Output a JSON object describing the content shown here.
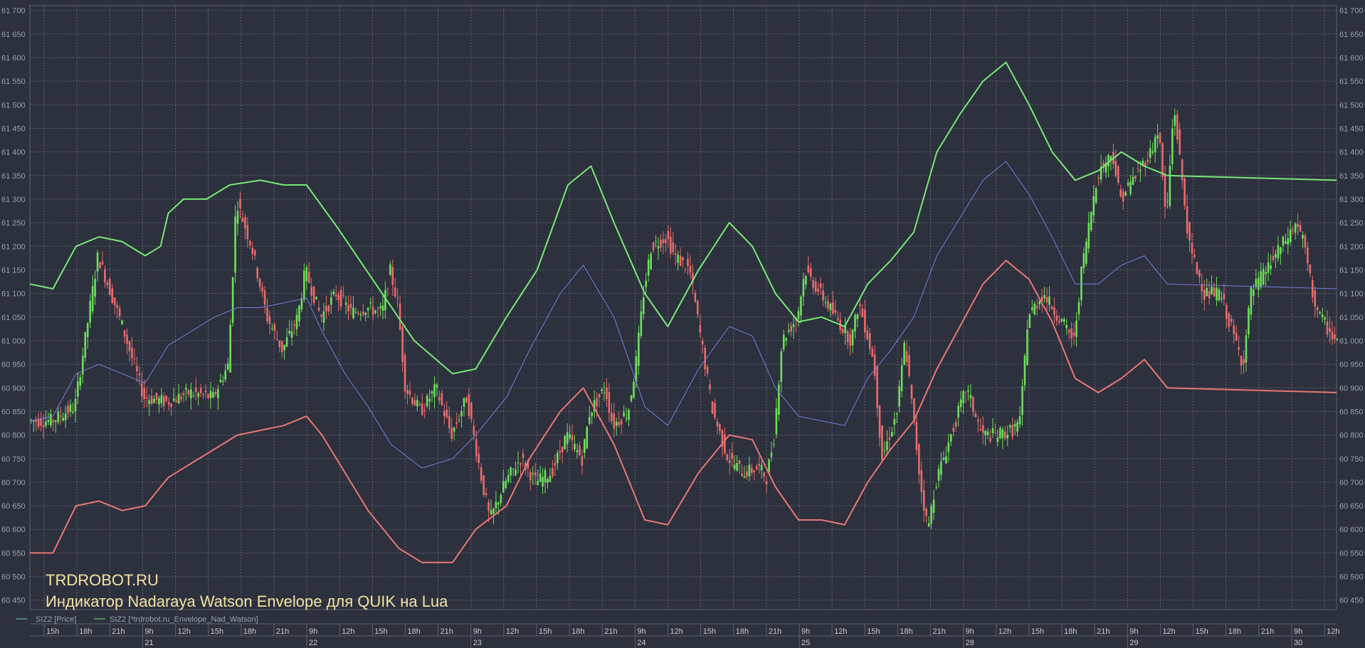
{
  "colors": {
    "background": "#2d303d",
    "grid": "#5e6270",
    "up": "#6ee05a",
    "down": "#e86c6c",
    "upper_band": "#78e878",
    "lower_band": "#e87872",
    "mid_band": "#7c7ce0",
    "text": "#9aa1ad",
    "watermark": "#f1e3a2"
  },
  "watermark": {
    "line1": "TRDROBOT.RU",
    "line2": "Индикатор Nadaraya Watson Envelope для QUIK на Lua"
  },
  "legend": [
    {
      "label": "SIZ2 [Price]",
      "color": "#78c8c8"
    },
    {
      "label": "SIZ2 [*trdrobot.ru_Envelope_Nad_Watson]",
      "color": "#78e878"
    }
  ],
  "time_axis": {
    "hour_labels": [
      "15h",
      "18h",
      "21h",
      "9h",
      "12h",
      "15h",
      "18h",
      "21h",
      "9h",
      "12h",
      "15h",
      "18h",
      "21h",
      "9h",
      "12h",
      "15h",
      "18h",
      "21h",
      "9h",
      "12h",
      "15h",
      "18h",
      "21h",
      "9h",
      "12h",
      "15h",
      "18h",
      "21h",
      "9h",
      "12h",
      "15h",
      "18h",
      "21h",
      "9h",
      "12h",
      "15h",
      "18h",
      "21h",
      "9h",
      "12h"
    ],
    "day_labels": [
      {
        "label": "21",
        "hour_index": 3
      },
      {
        "label": "22",
        "hour_index": 8
      },
      {
        "label": "23",
        "hour_index": 13
      },
      {
        "label": "24",
        "hour_index": 18
      },
      {
        "label": "25",
        "hour_index": 23
      },
      {
        "label": "28",
        "hour_index": 28
      },
      {
        "label": "29",
        "hour_index": 33
      },
      {
        "label": "30",
        "hour_index": 38
      }
    ]
  },
  "chart_data": {
    "type": "line",
    "ylim": [
      60430,
      61710
    ],
    "y_ticks": [
      {
        "value": 61700,
        "label": "61 700"
      },
      {
        "value": 61650,
        "label": "61 650"
      },
      {
        "value": 61600,
        "label": "61 600"
      },
      {
        "value": 61550,
        "label": "61 550"
      },
      {
        "value": 61500,
        "label": "61 500"
      },
      {
        "value": 61450,
        "label": "61 450"
      },
      {
        "value": 61400,
        "label": "61 400"
      },
      {
        "value": 61350,
        "label": "61 350"
      },
      {
        "value": 61300,
        "label": "61 300"
      },
      {
        "value": 61250,
        "label": "61 250"
      },
      {
        "value": 61200,
        "label": "61 200"
      },
      {
        "value": 61150,
        "label": "61 150"
      },
      {
        "value": 61100,
        "label": "61 100"
      },
      {
        "value": 61050,
        "label": "61 050"
      },
      {
        "value": 61000,
        "label": "61 000"
      },
      {
        "value": 60950,
        "label": "60 950"
      },
      {
        "value": 60900,
        "label": "60 900"
      },
      {
        "value": 60850,
        "label": "60 850"
      },
      {
        "value": 60800,
        "label": "60 800"
      },
      {
        "value": 60750,
        "label": "60 750"
      },
      {
        "value": 60700,
        "label": "60 700"
      },
      {
        "value": 60650,
        "label": "60 650"
      },
      {
        "value": 60600,
        "label": "60 600"
      },
      {
        "value": 60550,
        "label": "60 550"
      },
      {
        "value": 60500,
        "label": "60 500"
      },
      {
        "value": 60450,
        "label": "60 450"
      }
    ],
    "grid": true,
    "price_path": [
      [
        0,
        60830
      ],
      [
        3,
        60830
      ],
      [
        6,
        60860
      ],
      [
        9,
        61180
      ],
      [
        12,
        61040
      ],
      [
        15,
        60880
      ],
      [
        18,
        60870
      ],
      [
        21,
        60890
      ],
      [
        24,
        60880
      ],
      [
        26,
        60950
      ],
      [
        27,
        61300
      ],
      [
        29,
        61200
      ],
      [
        31,
        61050
      ],
      [
        33,
        60980
      ],
      [
        35,
        61050
      ],
      [
        36,
        61150
      ],
      [
        38,
        61050
      ],
      [
        40,
        61100
      ],
      [
        42,
        61060
      ],
      [
        44,
        61070
      ],
      [
        46,
        61060
      ],
      [
        47,
        61150
      ],
      [
        48,
        61080
      ],
      [
        49,
        60900
      ],
      [
        51,
        60850
      ],
      [
        53,
        60900
      ],
      [
        55,
        60800
      ],
      [
        57,
        60880
      ],
      [
        59,
        60700
      ],
      [
        60,
        60620
      ],
      [
        62,
        60700
      ],
      [
        64,
        60750
      ],
      [
        66,
        60700
      ],
      [
        68,
        60720
      ],
      [
        70,
        60800
      ],
      [
        72,
        60750
      ],
      [
        73,
        60850
      ],
      [
        75,
        60900
      ],
      [
        76,
        60820
      ],
      [
        78,
        60850
      ],
      [
        79,
        60950
      ],
      [
        80,
        61100
      ],
      [
        81,
        61200
      ],
      [
        83,
        61220
      ],
      [
        84,
        61180
      ],
      [
        86,
        61150
      ],
      [
        87,
        61050
      ],
      [
        89,
        60850
      ],
      [
        91,
        60750
      ],
      [
        93,
        60720
      ],
      [
        95,
        60730
      ],
      [
        96,
        60710
      ],
      [
        97,
        60800
      ],
      [
        98,
        61000
      ],
      [
        100,
        61050
      ],
      [
        101,
        61150
      ],
      [
        103,
        61100
      ],
      [
        105,
        61050
      ],
      [
        107,
        61000
      ],
      [
        108,
        61080
      ],
      [
        109,
        61020
      ],
      [
        110,
        60950
      ],
      [
        111,
        60750
      ],
      [
        113,
        60850
      ],
      [
        114,
        61000
      ],
      [
        115,
        60850
      ],
      [
        116,
        60700
      ],
      [
        117,
        60600
      ],
      [
        118,
        60700
      ],
      [
        120,
        60800
      ],
      [
        122,
        60900
      ],
      [
        123,
        60850
      ],
      [
        124,
        60800
      ],
      [
        126,
        60800
      ],
      [
        128,
        60810
      ],
      [
        129,
        60830
      ],
      [
        130,
        61050
      ],
      [
        132,
        61100
      ],
      [
        134,
        61050
      ],
      [
        136,
        61000
      ],
      [
        137,
        61150
      ],
      [
        138,
        61250
      ],
      [
        139,
        61350
      ],
      [
        141,
        61400
      ],
      [
        142,
        61300
      ],
      [
        144,
        61350
      ],
      [
        146,
        61400
      ],
      [
        147,
        61450
      ],
      [
        148,
        61250
      ],
      [
        149,
        61500
      ],
      [
        150,
        61350
      ],
      [
        151,
        61200
      ],
      [
        153,
        61100
      ],
      [
        155,
        61100
      ],
      [
        157,
        61000
      ],
      [
        158,
        60950
      ],
      [
        159,
        61100
      ],
      [
        161,
        61150
      ],
      [
        163,
        61200
      ],
      [
        165,
        61250
      ],
      [
        166,
        61200
      ],
      [
        167,
        61100
      ],
      [
        168,
        61050
      ],
      [
        170,
        61000
      ]
    ],
    "series": [
      {
        "name": "",
        "key": "upper",
        "points": [
          [
            0,
            61120
          ],
          [
            3,
            61110
          ],
          [
            6,
            61200
          ],
          [
            9,
            61220
          ],
          [
            12,
            61210
          ],
          [
            15,
            61180
          ],
          [
            17,
            61200
          ],
          [
            18,
            61270
          ],
          [
            20,
            61300
          ],
          [
            23,
            61300
          ],
          [
            26,
            61330
          ],
          [
            30,
            61340
          ],
          [
            33,
            61330
          ],
          [
            36,
            61330
          ],
          [
            40,
            61240
          ],
          [
            45,
            61120
          ],
          [
            50,
            61000
          ],
          [
            55,
            60930
          ],
          [
            58,
            60940
          ],
          [
            62,
            61050
          ],
          [
            66,
            61150
          ],
          [
            70,
            61330
          ],
          [
            73,
            61370
          ],
          [
            76,
            61250
          ],
          [
            80,
            61100
          ],
          [
            83,
            61030
          ],
          [
            87,
            61150
          ],
          [
            91,
            61250
          ],
          [
            94,
            61200
          ],
          [
            97,
            61100
          ],
          [
            100,
            61040
          ],
          [
            103,
            61050
          ],
          [
            106,
            61030
          ],
          [
            109,
            61120
          ],
          [
            112,
            61170
          ],
          [
            115,
            61230
          ],
          [
            118,
            61400
          ],
          [
            121,
            61480
          ],
          [
            124,
            61550
          ],
          [
            127,
            61590
          ],
          [
            130,
            61500
          ],
          [
            133,
            61400
          ],
          [
            136,
            61340
          ],
          [
            139,
            61360
          ],
          [
            142,
            61400
          ],
          [
            145,
            61370
          ],
          [
            148,
            61350
          ],
          [
            170,
            61340
          ]
        ]
      },
      {
        "name": "",
        "key": "lower",
        "points": [
          [
            0,
            60550
          ],
          [
            3,
            60550
          ],
          [
            6,
            60650
          ],
          [
            9,
            60660
          ],
          [
            12,
            60640
          ],
          [
            15,
            60650
          ],
          [
            18,
            60710
          ],
          [
            21,
            60740
          ],
          [
            24,
            60770
          ],
          [
            27,
            60800
          ],
          [
            30,
            60810
          ],
          [
            33,
            60820
          ],
          [
            36,
            60840
          ],
          [
            38,
            60800
          ],
          [
            41,
            60720
          ],
          [
            44,
            60640
          ],
          [
            48,
            60560
          ],
          [
            51,
            60530
          ],
          [
            55,
            60530
          ],
          [
            58,
            60600
          ],
          [
            62,
            60650
          ],
          [
            65,
            60750
          ],
          [
            69,
            60850
          ],
          [
            72,
            60900
          ],
          [
            76,
            60780
          ],
          [
            80,
            60620
          ],
          [
            83,
            60610
          ],
          [
            87,
            60720
          ],
          [
            91,
            60800
          ],
          [
            94,
            60790
          ],
          [
            97,
            60690
          ],
          [
            100,
            60620
          ],
          [
            103,
            60620
          ],
          [
            106,
            60610
          ],
          [
            109,
            60700
          ],
          [
            112,
            60770
          ],
          [
            115,
            60830
          ],
          [
            118,
            60940
          ],
          [
            121,
            61030
          ],
          [
            124,
            61120
          ],
          [
            127,
            61170
          ],
          [
            130,
            61130
          ],
          [
            133,
            61040
          ],
          [
            136,
            60920
          ],
          [
            139,
            60890
          ],
          [
            142,
            60920
          ],
          [
            145,
            60960
          ],
          [
            148,
            60900
          ],
          [
            170,
            60890
          ]
        ]
      },
      {
        "name": "",
        "key": "middle",
        "points": [
          [
            0,
            60830
          ],
          [
            3,
            60840
          ],
          [
            6,
            60930
          ],
          [
            9,
            60950
          ],
          [
            12,
            60930
          ],
          [
            15,
            60910
          ],
          [
            18,
            60990
          ],
          [
            21,
            61020
          ],
          [
            24,
            61050
          ],
          [
            27,
            61070
          ],
          [
            30,
            61070
          ],
          [
            33,
            61080
          ],
          [
            36,
            61090
          ],
          [
            38,
            61020
          ],
          [
            41,
            60930
          ],
          [
            44,
            60860
          ],
          [
            47,
            60780
          ],
          [
            51,
            60730
          ],
          [
            55,
            60750
          ],
          [
            58,
            60800
          ],
          [
            62,
            60880
          ],
          [
            65,
            60980
          ],
          [
            69,
            61100
          ],
          [
            72,
            61160
          ],
          [
            76,
            61050
          ],
          [
            80,
            60860
          ],
          [
            83,
            60820
          ],
          [
            87,
            60940
          ],
          [
            91,
            61030
          ],
          [
            94,
            61010
          ],
          [
            97,
            60900
          ],
          [
            100,
            60840
          ],
          [
            103,
            60830
          ],
          [
            106,
            60820
          ],
          [
            109,
            60920
          ],
          [
            112,
            60980
          ],
          [
            115,
            61050
          ],
          [
            118,
            61180
          ],
          [
            121,
            61260
          ],
          [
            124,
            61340
          ],
          [
            127,
            61380
          ],
          [
            130,
            61310
          ],
          [
            133,
            61220
          ],
          [
            136,
            61120
          ],
          [
            139,
            61120
          ],
          [
            142,
            61160
          ],
          [
            145,
            61180
          ],
          [
            148,
            61120
          ],
          [
            170,
            61110
          ]
        ]
      }
    ]
  }
}
